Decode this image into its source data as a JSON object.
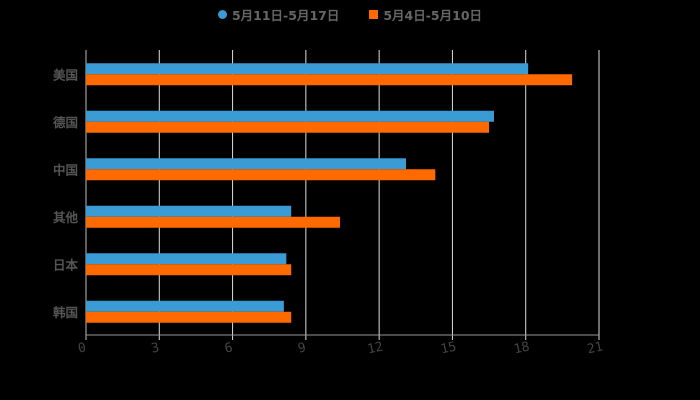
{
  "chart_data": {
    "type": "bar",
    "orientation": "horizontal",
    "title": "",
    "xlabel": "",
    "ylabel": "",
    "categories": [
      "美国",
      "德国",
      "中国",
      "其他",
      "日本",
      "韩国"
    ],
    "series": [
      {
        "name": "5月11日-5月17日",
        "color": "#3a9bd5",
        "marker": "circle",
        "values": [
          18.1,
          16.7,
          13.1,
          8.4,
          8.2,
          8.1
        ]
      },
      {
        "name": "5月4日-5月10日",
        "color": "#ff6a00",
        "marker": "square",
        "values": [
          19.9,
          16.5,
          14.3,
          10.4,
          8.4,
          8.4
        ]
      }
    ],
    "xlim": [
      0,
      21
    ],
    "xticks": [
      0,
      3,
      6,
      9,
      12,
      15,
      18,
      21
    ],
    "grid": true,
    "legend_position": "top"
  },
  "legend": {
    "items": [
      {
        "label": "5月11日-5月17日",
        "color": "#3a9bd5"
      },
      {
        "label": "5月4日-5月10日",
        "color": "#ff6a00"
      }
    ]
  }
}
